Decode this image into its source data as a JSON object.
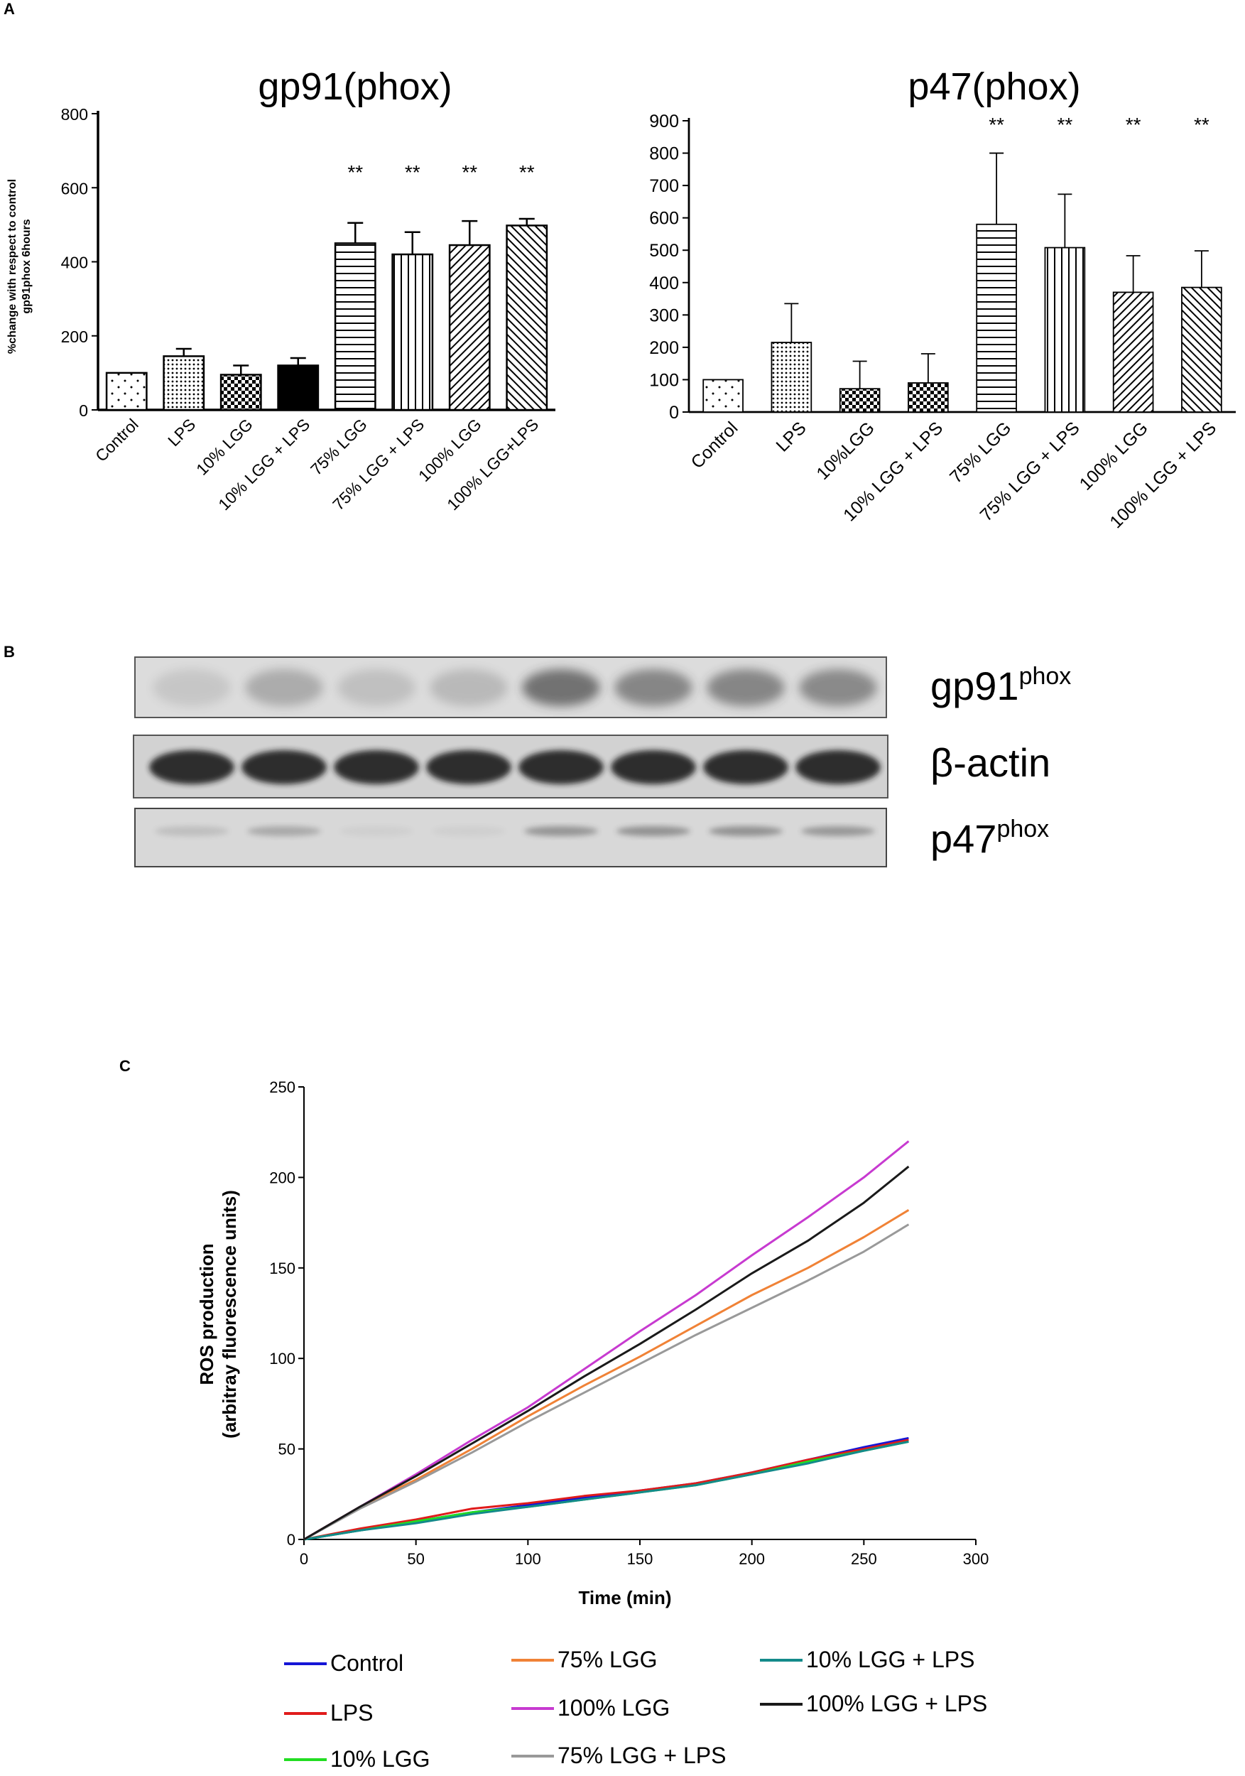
{
  "panels": {
    "a": "A",
    "b": "B",
    "c": "C"
  },
  "chart_data": [
    {
      "type": "bar",
      "title": "gp91(phox)",
      "ylabel_lines": [
        "%change with respect to control",
        "gp91phox 6hours"
      ],
      "ylim": [
        0,
        800
      ],
      "yticks": [
        0,
        200,
        400,
        600,
        800
      ],
      "categories": [
        "Control",
        "LPS",
        "10% LGG",
        "10% LGG + LPS",
        "75% LGG",
        "75% LGG + LPS",
        "100% LGG",
        "100% LGG+LPS"
      ],
      "values": [
        100,
        145,
        95,
        120,
        450,
        420,
        445,
        498
      ],
      "errors": [
        0,
        20,
        25,
        20,
        55,
        60,
        65,
        18
      ],
      "patterns": [
        "sparse-dots",
        "dense-dots",
        "checker",
        "solid",
        "horizontal",
        "vertical",
        "diag-down",
        "diag-up"
      ],
      "significance": [
        "",
        "",
        "",
        "",
        "**",
        "**",
        "**",
        "**"
      ]
    },
    {
      "type": "bar",
      "title": "p47(phox)",
      "ylim": [
        0,
        900
      ],
      "yticks": [
        0,
        100,
        200,
        300,
        400,
        500,
        600,
        700,
        800,
        900
      ],
      "categories": [
        "Control",
        "LPS",
        "10%LGG",
        "10% LGG + LPS",
        "75% LGG",
        "75% LGG + LPS",
        "100% LGG",
        "100% LGG + LPS"
      ],
      "values": [
        100,
        215,
        72,
        90,
        580,
        508,
        370,
        385
      ],
      "errors": [
        0,
        120,
        85,
        90,
        220,
        165,
        113,
        113
      ],
      "patterns": [
        "sparse-dots",
        "dense-dots",
        "checker",
        "checker",
        "horizontal",
        "vertical",
        "diag-down",
        "diag-up"
      ],
      "significance": [
        "",
        "",
        "",
        "",
        "**",
        "**",
        "**",
        "**"
      ]
    },
    {
      "type": "line",
      "xlabel": "Time (min)",
      "ylabel_lines": [
        "ROS production",
        "(arbitray fluorescence units)"
      ],
      "xlim": [
        0,
        300
      ],
      "ylim": [
        0,
        250
      ],
      "xticks": [
        0,
        50,
        100,
        150,
        200,
        250,
        300
      ],
      "yticks": [
        0,
        50,
        100,
        150,
        200,
        250
      ],
      "series": [
        {
          "name": "Control",
          "color": "#1515d6",
          "x": [
            0,
            25,
            50,
            75,
            100,
            125,
            150,
            175,
            200,
            225,
            250,
            270
          ],
          "y": [
            0,
            5,
            10,
            15,
            19,
            23,
            27,
            31,
            37,
            44,
            51,
            56
          ]
        },
        {
          "name": "LPS",
          "color": "#e01b1b",
          "x": [
            0,
            25,
            50,
            75,
            100,
            125,
            150,
            175,
            200,
            225,
            250,
            270
          ],
          "y": [
            0,
            6,
            11,
            17,
            20,
            24,
            27,
            31,
            37,
            44,
            50,
            55
          ]
        },
        {
          "name": "10% LGG",
          "color": "#22dd22",
          "x": [
            0,
            25,
            50,
            75,
            100,
            125,
            150,
            175,
            200,
            225,
            250,
            270
          ],
          "y": [
            0,
            5,
            10,
            15,
            18,
            22,
            26,
            30,
            36,
            43,
            49,
            54
          ]
        },
        {
          "name": "75% LGG",
          "color": "#f08236",
          "x": [
            0,
            25,
            50,
            75,
            100,
            125,
            150,
            175,
            200,
            225,
            250,
            270
          ],
          "y": [
            0,
            18,
            33,
            50,
            68,
            85,
            101,
            118,
            135,
            150,
            167,
            182
          ]
        },
        {
          "name": "100% LGG",
          "color": "#c73ad0",
          "x": [
            0,
            25,
            50,
            75,
            100,
            125,
            150,
            175,
            200,
            225,
            250,
            270
          ],
          "y": [
            0,
            18,
            36,
            55,
            73,
            94,
            115,
            135,
            157,
            178,
            200,
            220
          ]
        },
        {
          "name": "10% LGG + LPS",
          "color": "#138a8a",
          "x": [
            0,
            25,
            50,
            75,
            100,
            125,
            150,
            175,
            200,
            225,
            250,
            270
          ],
          "y": [
            0,
            5,
            9,
            14,
            18,
            22,
            26,
            30,
            36,
            42,
            49,
            54
          ]
        },
        {
          "name": "75% LGG + LPS",
          "color": "#999999",
          "x": [
            0,
            25,
            50,
            75,
            100,
            125,
            150,
            175,
            200,
            225,
            250,
            270
          ],
          "y": [
            0,
            17,
            32,
            48,
            65,
            81,
            97,
            113,
            128,
            143,
            159,
            174
          ]
        },
        {
          "name": "100% LGG + LPS",
          "color": "#1a1a1a",
          "x": [
            0,
            25,
            50,
            75,
            100,
            125,
            150,
            175,
            200,
            225,
            250,
            270
          ],
          "y": [
            0,
            18,
            35,
            53,
            71,
            90,
            108,
            127,
            147,
            165,
            186,
            206
          ]
        }
      ]
    }
  ],
  "blot": {
    "labels": [
      {
        "main": "gp91",
        "sup": "phox"
      },
      {
        "main": "β-actin",
        "sup": ""
      },
      {
        "main": "p47",
        "sup": "phox"
      }
    ]
  }
}
